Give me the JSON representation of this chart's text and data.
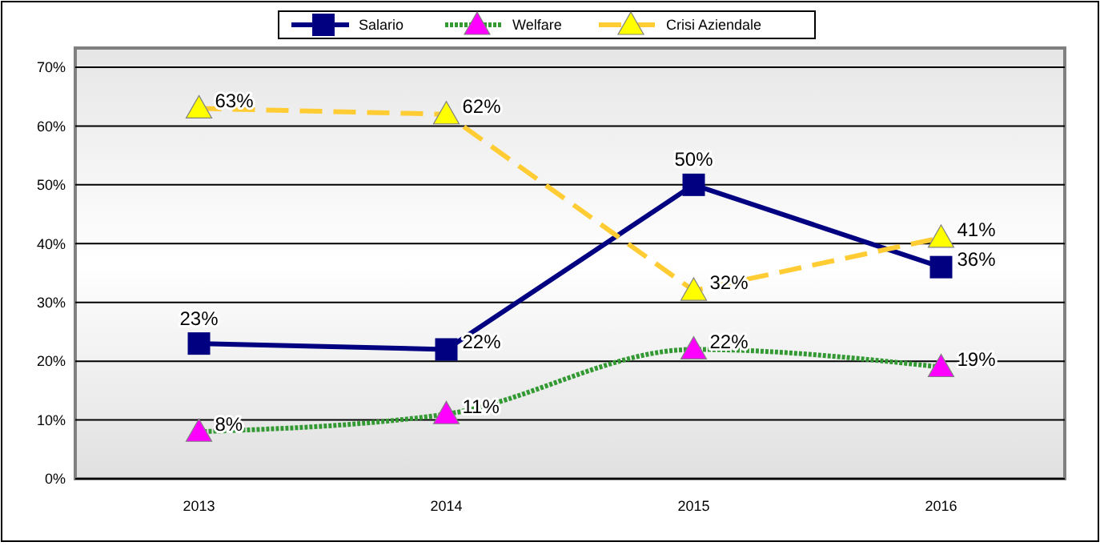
{
  "chart_data": {
    "type": "line",
    "categories": [
      "2013",
      "2014",
      "2015",
      "2016"
    ],
    "series": [
      {
        "name": "Salario",
        "color": "#000080",
        "marker": "square",
        "values": [
          23,
          22,
          50,
          36
        ],
        "value_labels": [
          "23%",
          "22%",
          "50%",
          "36%"
        ]
      },
      {
        "name": "Welfare",
        "color": "#339933",
        "marker": "triangle",
        "line_style": "dotted",
        "values": [
          8,
          11,
          22,
          19
        ],
        "value_labels": [
          "8%",
          "11%",
          "22%",
          "19%"
        ]
      },
      {
        "name": "Crisi Aziendale",
        "color": "#ffcc33",
        "marker": "triangle",
        "line_style": "dashed",
        "values": [
          63,
          62,
          32,
          41
        ],
        "value_labels": [
          "63%",
          "62%",
          "32%",
          "41%"
        ]
      }
    ],
    "ylim": [
      0,
      70
    ],
    "yticks": [
      {
        "value": 0,
        "label": "0%"
      },
      {
        "value": 10,
        "label": "10%"
      },
      {
        "value": 20,
        "label": "20%"
      },
      {
        "value": 30,
        "label": "30%"
      },
      {
        "value": 40,
        "label": "40%"
      },
      {
        "value": 50,
        "label": "50%"
      },
      {
        "value": 60,
        "label": "60%"
      },
      {
        "value": 70,
        "label": "70%"
      }
    ],
    "grid": "y",
    "legend": "top"
  }
}
